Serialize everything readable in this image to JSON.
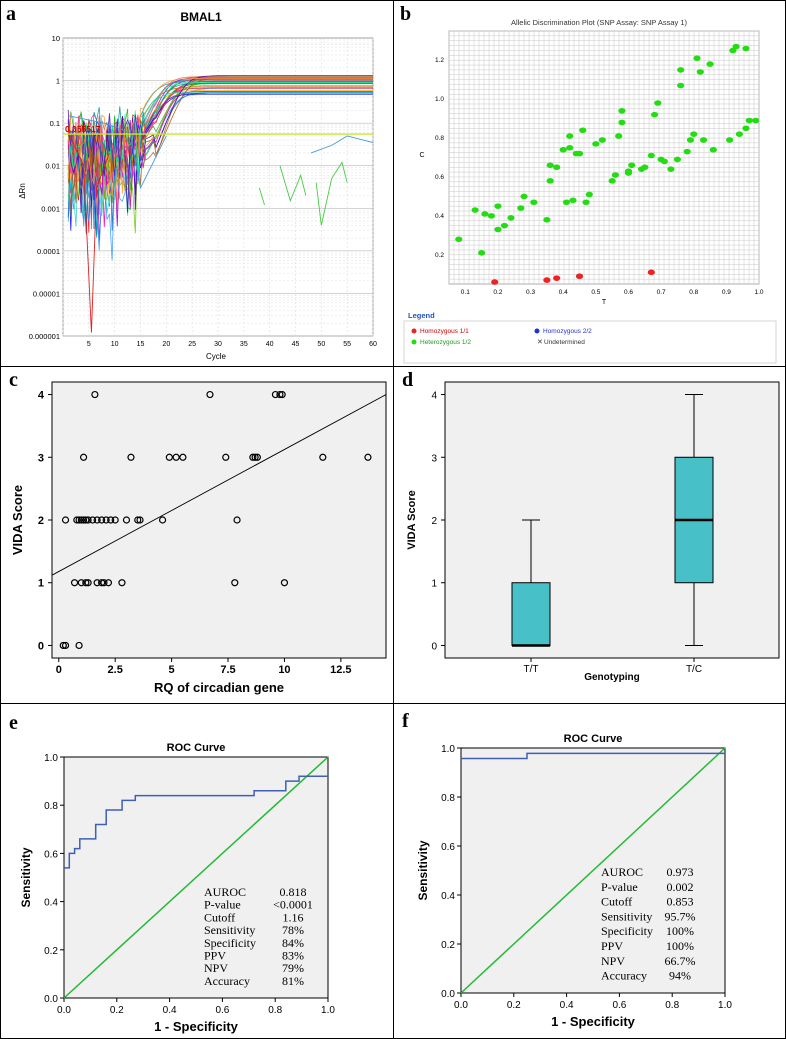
{
  "panels": {
    "a": {
      "letter": "a",
      "title": "BMAL1",
      "xlabel": "Cycle",
      "ylabel": "ΔRn",
      "threshold_label": "0.055517",
      "yticks": [
        "10",
        "1",
        "0.1",
        "0.01",
        "0.001",
        "0.0001",
        "0.00001",
        "0.000001"
      ],
      "xticks": [
        "5",
        "10",
        "15",
        "20",
        "25",
        "30",
        "35",
        "40",
        "45",
        "50",
        "55",
        "60"
      ]
    },
    "b": {
      "letter": "b",
      "title": "Allelic Discrimination Plot (SNP Assay: SNP Assay 1)",
      "xlabel": "T",
      "ylabel": "C",
      "legend_title": "Legend",
      "legend": [
        "Homozygous 1/1",
        "Homozygous 2/2",
        "Heterozygous 1/2",
        "Undetermined"
      ],
      "xticks": [
        "0.1",
        "0.2",
        "0.3",
        "0.4",
        "0.5",
        "0.6",
        "0.7",
        "0.8",
        "0.9",
        "1.0"
      ],
      "yticks": [
        "0.2",
        "0.4",
        "0.6",
        "0.8",
        "1.0",
        "1.2"
      ]
    },
    "c": {
      "letter": "c",
      "xlabel": "RQ of circadian gene",
      "ylabel": "VIDA Score",
      "xticks": [
        "0",
        "2.5",
        "5",
        "7.5",
        "10",
        "12.5"
      ],
      "yticks": [
        "0",
        "1",
        "2",
        "3",
        "4"
      ]
    },
    "d": {
      "letter": "d",
      "xlabel": "Genotyping",
      "ylabel": "VIDA Score",
      "categories": [
        "T/T",
        "T/C"
      ],
      "yticks": [
        "0",
        "1",
        "2",
        "3",
        "4"
      ]
    },
    "e": {
      "letter": "e",
      "title": "ROC Curve",
      "xlabel": "1 - Specificity",
      "ylabel": "Sensitivity",
      "ticks": [
        "0.0",
        "0.2",
        "0.4",
        "0.6",
        "0.8",
        "1.0"
      ],
      "stats": [
        [
          "AUROC",
          "0.818"
        ],
        [
          "P-value",
          "<0.0001"
        ],
        [
          "Cutoff",
          "1.16"
        ],
        [
          "Sensitivity",
          "78%"
        ],
        [
          "Specificity",
          "84%"
        ],
        [
          "PPV",
          "83%"
        ],
        [
          "NPV",
          "79%"
        ],
        [
          "Accuracy",
          "81%"
        ]
      ]
    },
    "f": {
      "letter": "f",
      "title": "ROC Curve",
      "xlabel": "1 - Specificity",
      "ylabel": "Sensitivity",
      "ticks": [
        "0.0",
        "0.2",
        "0.4",
        "0.6",
        "0.8",
        "1.0"
      ],
      "stats": [
        [
          "AUROC",
          "0.973"
        ],
        [
          "P-value",
          "0.002"
        ],
        [
          "Cutoff",
          "0.853"
        ],
        [
          "Sensitivity",
          "95.7%"
        ],
        [
          "Specificity",
          "100%"
        ],
        [
          "PPV",
          "100%"
        ],
        [
          "NPV",
          "66.7%"
        ],
        [
          "Accuracy",
          "94%"
        ]
      ]
    }
  },
  "colors": {
    "plot_bg": "#f0f0f0",
    "box": "#47c1c7",
    "roc": "#3f5fb5",
    "diag": "#22bb33",
    "threshold": "#c8e62e",
    "het": "#22dd11",
    "hom11": "#ee2222",
    "legend_title": "#2255bb"
  },
  "chart_data": [
    {
      "type": "line",
      "title": "BMAL1",
      "xlabel": "Cycle",
      "ylabel": "ΔRn",
      "yscale": "log",
      "ylim": [
        1e-06,
        10
      ],
      "xlim": [
        0,
        60
      ],
      "threshold": 0.055517,
      "note": "amplification curves, multiple samples, plateau ~0.4–1.3"
    },
    {
      "type": "scatter",
      "title": "Allelic Discrimination Plot (SNP Assay: SNP Assay 1)",
      "xlabel": "T",
      "ylabel": "C",
      "xlim": [
        0.05,
        1.0
      ],
      "ylim": [
        0.05,
        1.35
      ],
      "series": [
        {
          "name": "Homozygous 1/1",
          "points": [
            [
              0.19,
              0.06
            ],
            [
              0.35,
              0.07
            ],
            [
              0.38,
              0.08
            ],
            [
              0.45,
              0.09
            ],
            [
              0.67,
              0.11
            ]
          ]
        },
        {
          "name": "Heterozygous 1/2",
          "points": [
            [
              0.08,
              0.28
            ],
            [
              0.13,
              0.43
            ],
            [
              0.15,
              0.21
            ],
            [
              0.16,
              0.41
            ],
            [
              0.18,
              0.4
            ],
            [
              0.2,
              0.33
            ],
            [
              0.2,
              0.45
            ],
            [
              0.22,
              0.35
            ],
            [
              0.24,
              0.39
            ],
            [
              0.27,
              0.44
            ],
            [
              0.28,
              0.5
            ],
            [
              0.31,
              0.47
            ],
            [
              0.35,
              0.38
            ],
            [
              0.36,
              0.66
            ],
            [
              0.36,
              0.58
            ],
            [
              0.38,
              0.65
            ],
            [
              0.4,
              0.74
            ],
            [
              0.41,
              0.47
            ],
            [
              0.42,
              0.75
            ],
            [
              0.42,
              0.81
            ],
            [
              0.43,
              0.48
            ],
            [
              0.44,
              0.72
            ],
            [
              0.45,
              0.72
            ],
            [
              0.46,
              0.84
            ],
            [
              0.47,
              0.47
            ],
            [
              0.48,
              0.51
            ],
            [
              0.5,
              0.77
            ],
            [
              0.52,
              0.79
            ],
            [
              0.55,
              0.58
            ],
            [
              0.56,
              0.61
            ],
            [
              0.57,
              0.81
            ],
            [
              0.58,
              0.88
            ],
            [
              0.58,
              0.94
            ],
            [
              0.6,
              0.63
            ],
            [
              0.6,
              0.62
            ],
            [
              0.61,
              0.66
            ],
            [
              0.64,
              0.64
            ],
            [
              0.65,
              0.65
            ],
            [
              0.67,
              0.71
            ],
            [
              0.68,
              0.92
            ],
            [
              0.69,
              0.98
            ],
            [
              0.7,
              0.69
            ],
            [
              0.71,
              0.68
            ],
            [
              0.73,
              0.64
            ],
            [
              0.75,
              0.69
            ],
            [
              0.76,
              1.07
            ],
            [
              0.76,
              1.15
            ],
            [
              0.78,
              0.73
            ],
            [
              0.79,
              0.79
            ],
            [
              0.8,
              0.82
            ],
            [
              0.81,
              1.21
            ],
            [
              0.82,
              1.14
            ],
            [
              0.83,
              0.79
            ],
            [
              0.85,
              1.18
            ],
            [
              0.86,
              0.74
            ],
            [
              0.91,
              0.79
            ],
            [
              0.92,
              1.25
            ],
            [
              0.93,
              1.27
            ],
            [
              0.94,
              0.82
            ],
            [
              0.96,
              1.26
            ],
            [
              0.96,
              0.85
            ],
            [
              0.97,
              0.89
            ],
            [
              0.99,
              0.89
            ]
          ]
        }
      ]
    },
    {
      "type": "scatter",
      "xlabel": "RQ of circadian gene",
      "ylabel": "VIDA Score",
      "xlim": [
        -0.3,
        14.5
      ],
      "ylim": [
        -0.2,
        4.2
      ],
      "points": [
        [
          0.2,
          0
        ],
        [
          0.3,
          0
        ],
        [
          0.9,
          0
        ],
        [
          1.6,
          4
        ],
        [
          6.7,
          4
        ],
        [
          9.6,
          4
        ],
        [
          9.9,
          4
        ],
        [
          9.8,
          4
        ],
        [
          1.1,
          3
        ],
        [
          3.2,
          3
        ],
        [
          4.9,
          3
        ],
        [
          5.2,
          3
        ],
        [
          5.5,
          3
        ],
        [
          7.4,
          3
        ],
        [
          8.6,
          3
        ],
        [
          8.7,
          3
        ],
        [
          8.8,
          3
        ],
        [
          11.7,
          3
        ],
        [
          13.7,
          3
        ],
        [
          0.3,
          2
        ],
        [
          0.8,
          2
        ],
        [
          0.9,
          2
        ],
        [
          1.0,
          2
        ],
        [
          1.1,
          2
        ],
        [
          1.2,
          2
        ],
        [
          1.3,
          2
        ],
        [
          1.5,
          2
        ],
        [
          1.7,
          2
        ],
        [
          1.9,
          2
        ],
        [
          2.1,
          2
        ],
        [
          2.3,
          2
        ],
        [
          2.5,
          2
        ],
        [
          3.0,
          2
        ],
        [
          3.5,
          2
        ],
        [
          3.6,
          2
        ],
        [
          4.6,
          2
        ],
        [
          7.9,
          2
        ],
        [
          0.7,
          1
        ],
        [
          1.0,
          1
        ],
        [
          1.2,
          1
        ],
        [
          1.3,
          1
        ],
        [
          1.7,
          1
        ],
        [
          1.9,
          1
        ],
        [
          2.0,
          1
        ],
        [
          2.2,
          1
        ],
        [
          2.8,
          1
        ],
        [
          7.8,
          1
        ],
        [
          10.0,
          1
        ]
      ],
      "fit_line": [
        [
          -0.3,
          1.12
        ],
        [
          14.5,
          4.0
        ]
      ]
    },
    {
      "type": "box",
      "xlabel": "Genotyping",
      "ylabel": "VIDA Score",
      "categories": [
        "T/T",
        "T/C"
      ],
      "ylim": [
        -0.2,
        4.2
      ],
      "series": [
        {
          "name": "T/T",
          "min": 0,
          "q1": 0,
          "median": 0,
          "q3": 1,
          "max": 2
        },
        {
          "name": "T/C",
          "min": 0,
          "q1": 1,
          "median": 2,
          "q3": 3,
          "max": 4
        }
      ]
    },
    {
      "type": "line",
      "title": "ROC Curve",
      "xlabel": "1 - Specificity",
      "ylabel": "Sensitivity",
      "xlim": [
        0,
        1
      ],
      "ylim": [
        0,
        1
      ],
      "series": [
        {
          "name": "ROC",
          "points": [
            [
              0,
              0.54
            ],
            [
              0,
              0.54
            ],
            [
              0,
              0.54
            ],
            [
              0.02,
              0.54
            ],
            [
              0.02,
              0.6
            ],
            [
              0.04,
              0.6
            ],
            [
              0.04,
              0.62
            ],
            [
              0.06,
              0.62
            ],
            [
              0.06,
              0.66
            ],
            [
              0.12,
              0.66
            ],
            [
              0.12,
              0.72
            ],
            [
              0.16,
              0.72
            ],
            [
              0.16,
              0.78
            ],
            [
              0.22,
              0.78
            ],
            [
              0.22,
              0.82
            ],
            [
              0.27,
              0.82
            ],
            [
              0.27,
              0.84
            ],
            [
              0.72,
              0.84
            ],
            [
              0.72,
              0.86
            ],
            [
              0.84,
              0.86
            ],
            [
              0.84,
              0.9
            ],
            [
              0.89,
              0.9
            ],
            [
              0.89,
              0.92
            ],
            [
              1.0,
              0.92
            ]
          ]
        },
        {
          "name": "Reference",
          "points": [
            [
              0,
              0
            ],
            [
              1,
              1
            ]
          ]
        }
      ]
    },
    {
      "type": "line",
      "title": "ROC Curve",
      "xlabel": "1 - Specificity",
      "ylabel": "Sensitivity",
      "xlim": [
        0,
        1
      ],
      "ylim": [
        0,
        1
      ],
      "series": [
        {
          "name": "ROC",
          "points": [
            [
              0,
              0.957
            ],
            [
              0.25,
              0.957
            ],
            [
              0.25,
              0.978
            ],
            [
              1.0,
              0.978
            ]
          ]
        },
        {
          "name": "Reference",
          "points": [
            [
              0,
              0
            ],
            [
              1,
              1
            ]
          ]
        }
      ]
    }
  ]
}
